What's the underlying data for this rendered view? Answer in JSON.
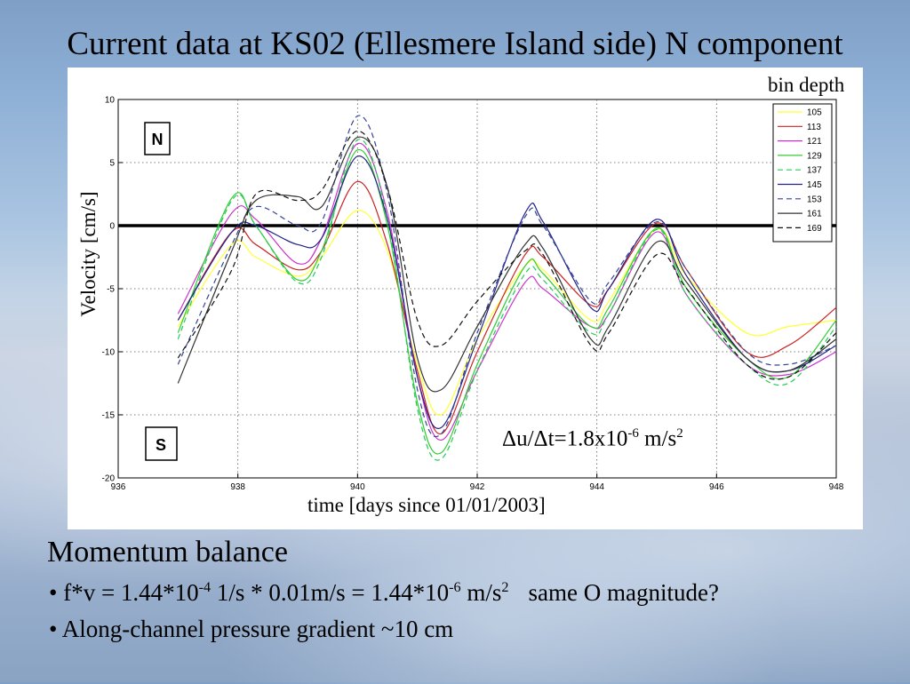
{
  "slide": {
    "title": "Current data at KS02 (Ellesmere Island side) N component",
    "section_title": "Momentum balance",
    "bullets": [
      {
        "bullet": "•",
        "p1": " f*v = 1.44*10",
        "p1_sup": "-4",
        "p2": " 1/s * 0.01m/s = 1.44*10",
        "p2_sup": "-6",
        "p3": " m/s",
        "p3_sup": "2",
        "p4": "same O magnitude?"
      },
      {
        "bullet": "•",
        "text": " Along-channel pressure gradient ~10 cm"
      }
    ]
  },
  "chart_data": {
    "type": "line",
    "title": "",
    "xlabel": "time [days since 01/01/2003]",
    "ylabel": "Velocity [cm/s]",
    "xlim": [
      936,
      948
    ],
    "ylim": [
      -20,
      10
    ],
    "xticks": [
      936,
      938,
      940,
      942,
      944,
      946,
      948
    ],
    "yticks": [
      10,
      5,
      0,
      -5,
      -10,
      -15,
      -20
    ],
    "grid": true,
    "zero_line": true,
    "legend": {
      "title": "bin depth",
      "placement": "top-right"
    },
    "box_labels": {
      "north": "N",
      "south": "S"
    },
    "annotation": {
      "prefix": "Δu/Δt=1.8x10",
      "sup1": "-6",
      "mid": " m/s",
      "sup2": "2"
    },
    "x": [
      937.0,
      937.9,
      938.3,
      939.0,
      939.4,
      940.0,
      940.5,
      941.0,
      941.4,
      942.0,
      942.8,
      943.1,
      943.9,
      944.2,
      945.0,
      945.5,
      946.5,
      947.2,
      948.0
    ],
    "series": [
      {
        "name": "105",
        "color": "#ffff33",
        "dash": false,
        "values": [
          -8.0,
          -1.5,
          -2.5,
          -4.0,
          -2.5,
          1.2,
          -2.0,
          -11.0,
          -15.0,
          -9.0,
          -3.2,
          -3.5,
          -7.5,
          -6.0,
          -0.3,
          -4.0,
          -8.5,
          -8.0,
          -7.5
        ]
      },
      {
        "name": "113",
        "color": "#cc2222",
        "dash": false,
        "values": [
          -7.5,
          -0.5,
          -1.5,
          -3.5,
          -2.0,
          3.5,
          -1.5,
          -11.5,
          -16.5,
          -10.0,
          -2.3,
          -2.5,
          -6.3,
          -5.0,
          0.2,
          -3.5,
          -10.0,
          -9.5,
          -6.5
        ]
      },
      {
        "name": "121",
        "color": "#cc33cc",
        "dash": false,
        "values": [
          -7.0,
          1.0,
          0.5,
          -3.0,
          -1.0,
          6.5,
          1.0,
          -12.0,
          -17.0,
          -11.5,
          -4.5,
          -5.0,
          -8.0,
          -7.0,
          -0.5,
          -5.5,
          -11.0,
          -11.8,
          -10.0
        ]
      },
      {
        "name": "129",
        "color": "#33cc33",
        "dash": false,
        "values": [
          -8.5,
          2.2,
          0.0,
          -4.3,
          -2.0,
          6.0,
          0.0,
          -14.0,
          -18.0,
          -11.0,
          -3.2,
          -3.8,
          -8.0,
          -6.5,
          -0.2,
          -5.0,
          -10.5,
          -12.0,
          -7.5
        ]
      },
      {
        "name": "137",
        "color": "#22cc55",
        "dash": true,
        "values": [
          -9.0,
          2.0,
          0.0,
          -4.5,
          -2.5,
          6.8,
          0.5,
          -14.5,
          -18.5,
          -11.5,
          -3.8,
          -4.3,
          -8.5,
          -7.0,
          -0.3,
          -5.5,
          -11.0,
          -12.5,
          -8.0
        ]
      },
      {
        "name": "145",
        "color": "#222288",
        "dash": false,
        "values": [
          -7.5,
          -0.5,
          0.0,
          -1.5,
          -1.0,
          5.5,
          0.5,
          -12.0,
          -16.0,
          -9.0,
          1.0,
          0.3,
          -6.5,
          -5.0,
          0.5,
          -4.0,
          -10.5,
          -11.5,
          -9.5
        ]
      },
      {
        "name": "153",
        "color": "#334499",
        "dash": true,
        "values": [
          -11.0,
          -1.5,
          1.5,
          0.0,
          0.3,
          8.7,
          2.5,
          -13.0,
          -16.5,
          -8.5,
          0.7,
          0.0,
          -6.0,
          -4.5,
          0.3,
          -3.5,
          -10.0,
          -11.0,
          -9.5
        ]
      },
      {
        "name": "161",
        "color": "#333333",
        "dash": false,
        "values": [
          -12.5,
          -2.0,
          2.0,
          2.3,
          1.5,
          7.0,
          3.0,
          -10.5,
          -13.0,
          -8.0,
          -1.5,
          -1.8,
          -9.0,
          -8.0,
          -1.3,
          -4.5,
          -10.5,
          -11.5,
          -9.0
        ]
      },
      {
        "name": "169",
        "color": "#111111",
        "dash": true,
        "values": [
          -10.5,
          -3.5,
          2.5,
          2.0,
          2.8,
          7.5,
          3.0,
          -7.5,
          -9.5,
          -6.0,
          -2.0,
          -2.3,
          -9.5,
          -8.5,
          -2.3,
          -5.0,
          -11.0,
          -12.0,
          -8.5
        ]
      }
    ]
  }
}
